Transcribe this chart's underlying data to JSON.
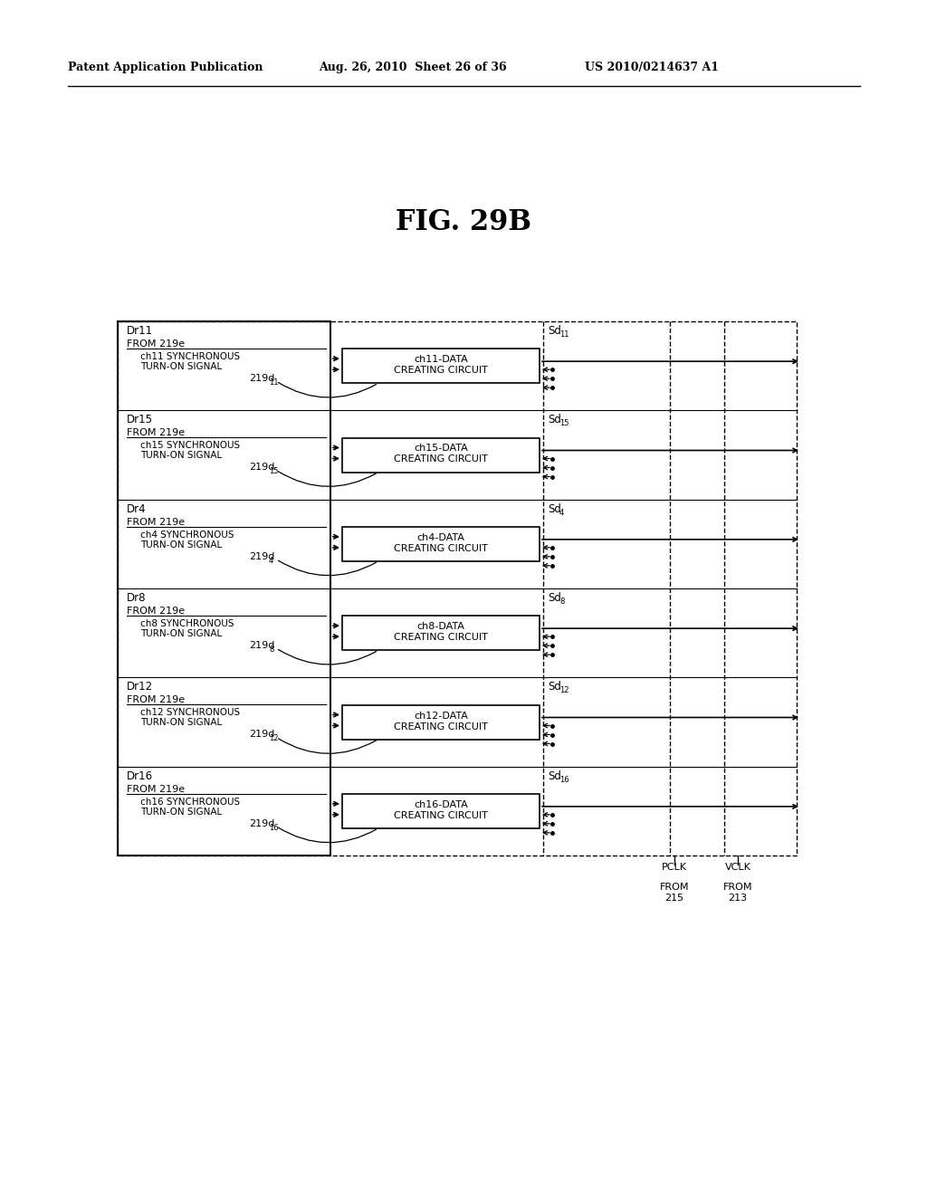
{
  "title": "FIG. 29B",
  "header_left": "Patent Application Publication",
  "header_mid": "Aug. 26, 2010  Sheet 26 of 36",
  "header_right": "US 2010/0214637 A1",
  "background": "#ffffff",
  "circuits": [
    {
      "name_top": "ch11-DATA",
      "name_bot": "CREATING CIRCUIT",
      "label_dr": "Dr11",
      "label_from": "FROM 219e",
      "label_sync": "ch11 SYNCHRONOUS",
      "label_sync2": "TURN-ON SIGNAL",
      "label_219": "219d",
      "label_219_sub": "11",
      "label_sd": "Sd",
      "label_sd_sub": "11"
    },
    {
      "name_top": "ch15-DATA",
      "name_bot": "CREATING CIRCUIT",
      "label_dr": "Dr15",
      "label_from": "FROM 219e",
      "label_sync": "ch15 SYNCHRONOUS",
      "label_sync2": "TURN-ON SIGNAL",
      "label_219": "219d",
      "label_219_sub": "15",
      "label_sd": "Sd",
      "label_sd_sub": "15"
    },
    {
      "name_top": "ch4-DATA",
      "name_bot": "CREATING CIRCUIT",
      "label_dr": "Dr4",
      "label_from": "FROM 219e",
      "label_sync": "ch4 SYNCHRONOUS",
      "label_sync2": "TURN-ON SIGNAL",
      "label_219": "219d",
      "label_219_sub": "4",
      "label_sd": "Sd",
      "label_sd_sub": "4"
    },
    {
      "name_top": "ch8-DATA",
      "name_bot": "CREATING CIRCUIT",
      "label_dr": "Dr8",
      "label_from": "FROM 219e",
      "label_sync": "ch8 SYNCHRONOUS",
      "label_sync2": "TURN-ON SIGNAL",
      "label_219": "219d",
      "label_219_sub": "8",
      "label_sd": "Sd",
      "label_sd_sub": "8"
    },
    {
      "name_top": "ch12-DATA",
      "name_bot": "CREATING CIRCUIT",
      "label_dr": "Dr12",
      "label_from": "FROM 219e",
      "label_sync": "ch12 SYNCHRONOUS",
      "label_sync2": "TURN-ON SIGNAL",
      "label_219": "219d",
      "label_219_sub": "12",
      "label_sd": "Sd",
      "label_sd_sub": "12"
    },
    {
      "name_top": "ch16-DATA",
      "name_bot": "CREATING CIRCUIT",
      "label_dr": "Dr16",
      "label_from": "FROM 219e",
      "label_sync": "ch16 SYNCHRONOUS",
      "label_sync2": "TURN-ON SIGNAL",
      "label_219": "219d",
      "label_219_sub": "16",
      "label_sd": "Sd",
      "label_sd_sub": "16"
    }
  ]
}
